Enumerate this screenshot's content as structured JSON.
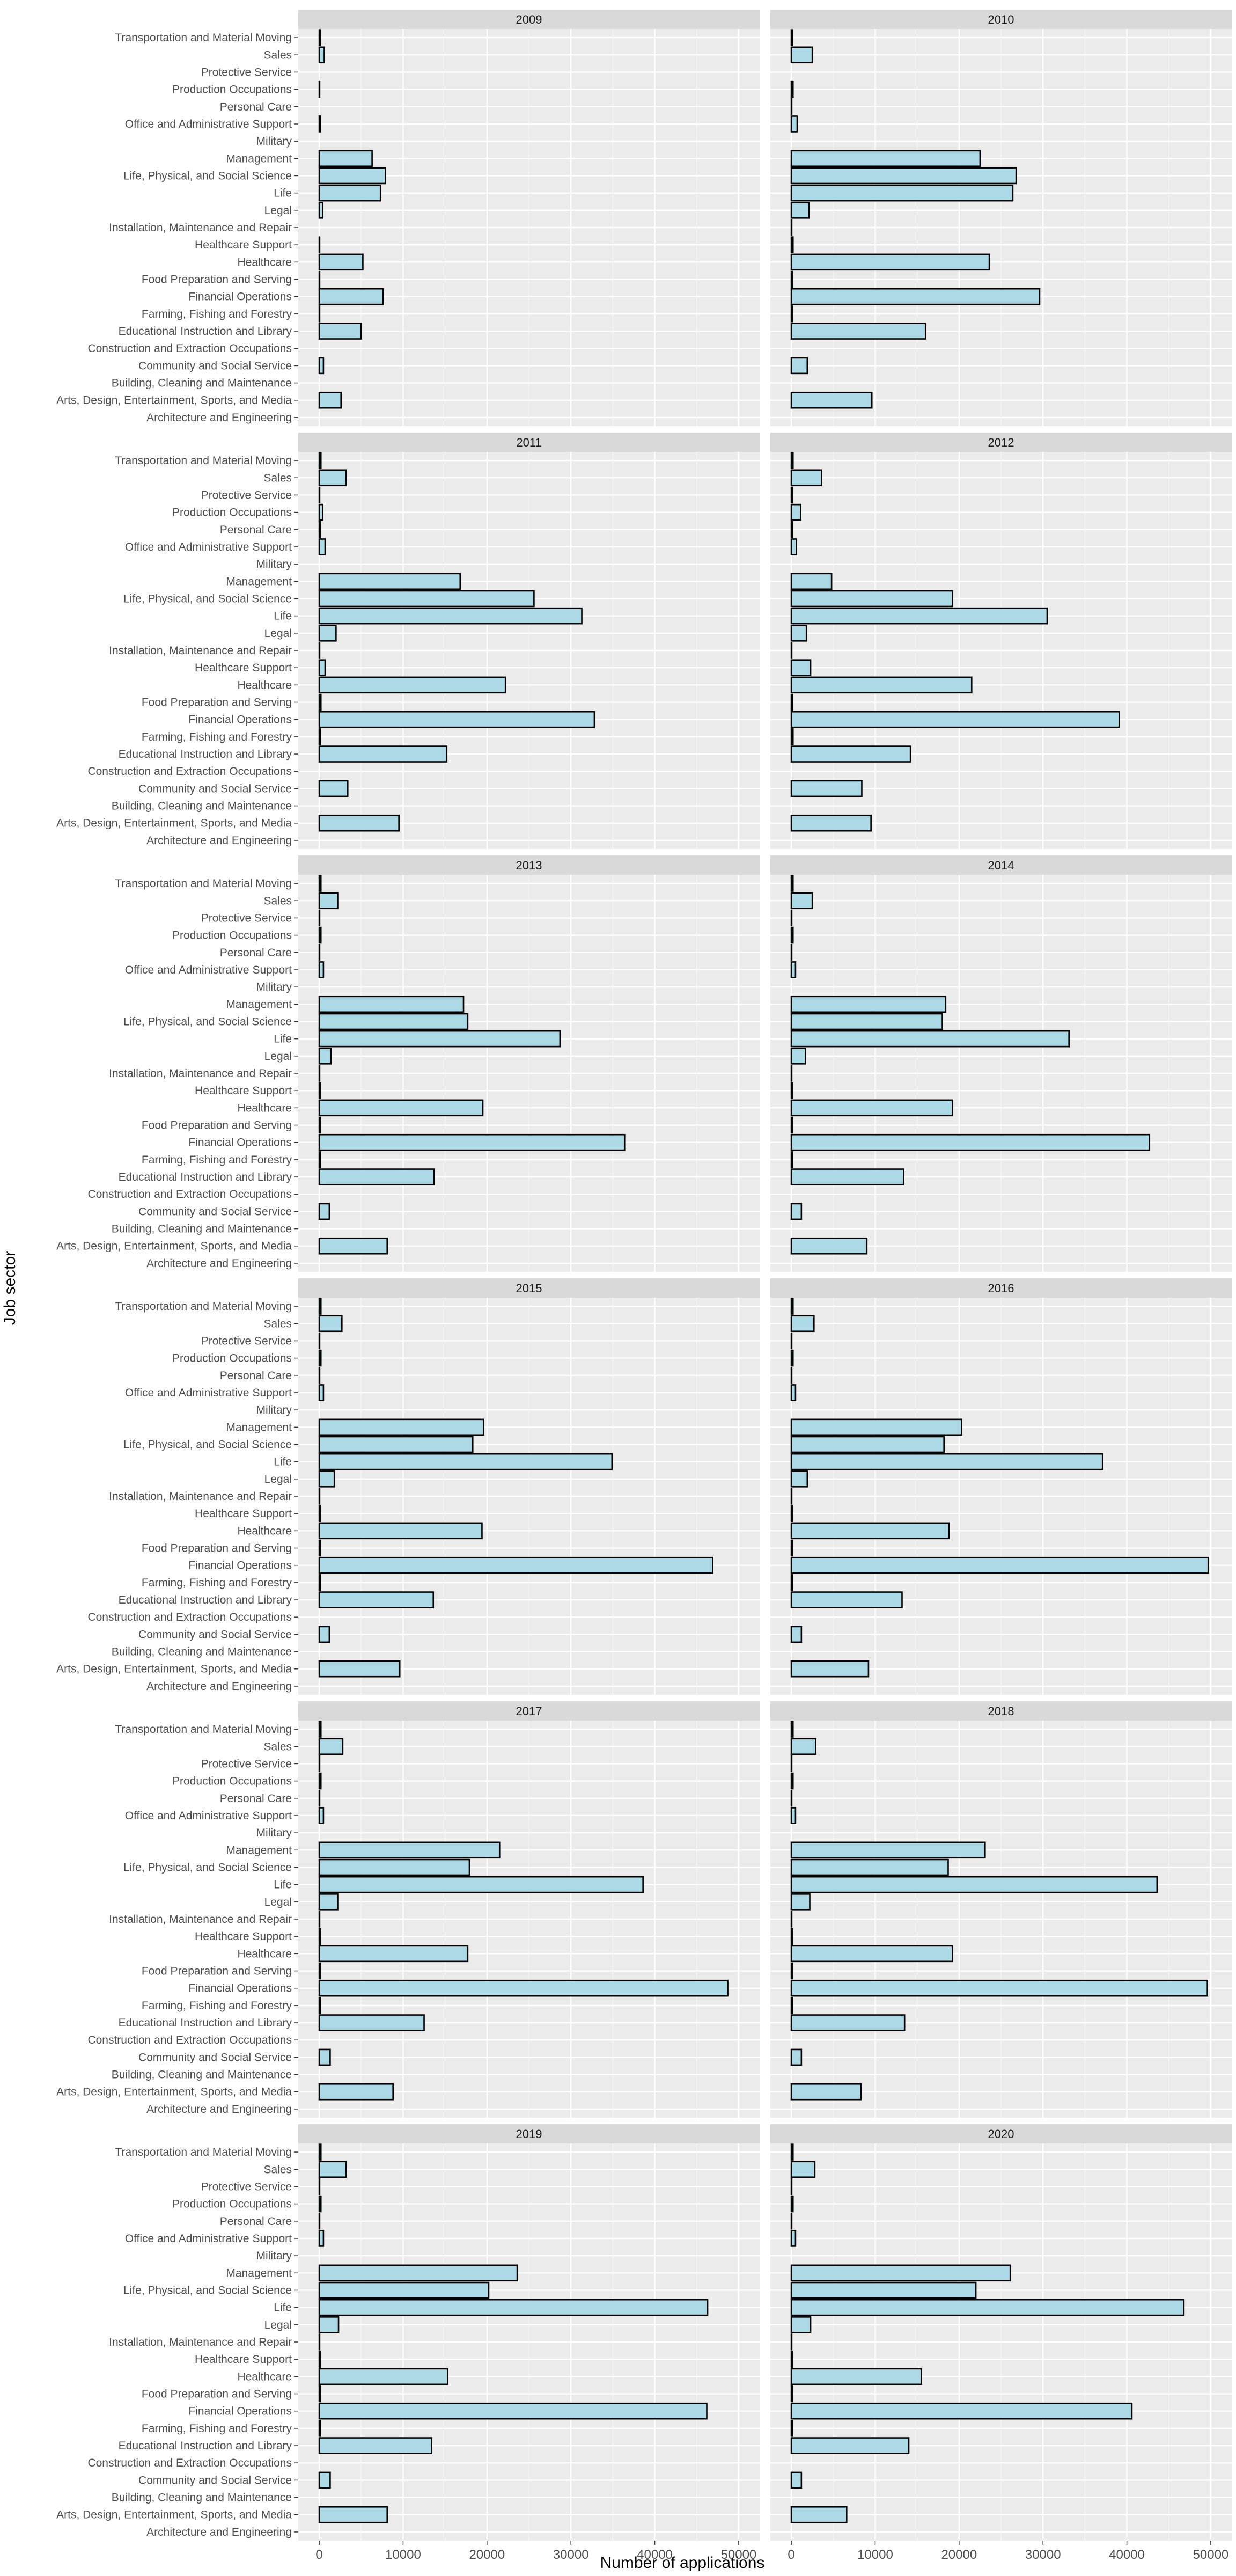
{
  "chart_data": {
    "type": "bar",
    "orientation": "horizontal",
    "xlabel": "Number of applications",
    "ylabel": "Job sector",
    "xlim": [
      -2500,
      52500
    ],
    "x_ticks": [
      0,
      10000,
      20000,
      30000,
      40000,
      50000
    ],
    "x_tick_labels": [
      "0",
      "10000",
      "20000",
      "30000",
      "40000",
      "50000"
    ],
    "grid": true,
    "facet_layout": "6 rows x 2 columns",
    "bar_fill": "#add8e6",
    "bar_stroke": "#000000",
    "panel_background": "#ebebeb",
    "strip_background": "#d9d9d9",
    "grid_color": "#ffffff",
    "categories": [
      "Transportation and Material Moving",
      "Sales",
      "Protective Service",
      "Production Occupations",
      "Personal Care",
      "Office and Administrative Support",
      "Military",
      "Management",
      "Life, Physical, and Social Science",
      "Life",
      "Legal",
      "Installation, Maintenance and Repair",
      "Healthcare Support",
      "Healthcare",
      "Food Preparation and Serving",
      "Financial Operations",
      "Farming, Fishing and Forestry",
      "Educational Instruction and Library",
      "Construction and Extraction Occupations",
      "Community and Social Service",
      "Building, Cleaning and Maintenance",
      "Arts, Design, Entertainment, Sports, and Media",
      "Architecture and Engineering"
    ],
    "facets": [
      {
        "label": "2009",
        "values": [
          100,
          600,
          0,
          50,
          0,
          150,
          0,
          6300,
          7900,
          7300,
          400,
          0,
          50,
          5200,
          50,
          7600,
          50,
          5000,
          0,
          500,
          0,
          2600,
          0
        ]
      },
      {
        "label": "2010",
        "values": [
          150,
          2500,
          0,
          200,
          50,
          700,
          0,
          22500,
          26800,
          26400,
          2100,
          50,
          200,
          23600,
          100,
          29600,
          100,
          16000,
          0,
          1900,
          0,
          9600,
          0
        ]
      },
      {
        "label": "2011",
        "values": [
          200,
          3200,
          50,
          400,
          100,
          700,
          0,
          16800,
          25600,
          31300,
          2000,
          50,
          700,
          22200,
          200,
          32800,
          150,
          15200,
          0,
          3400,
          0,
          9500,
          0
        ]
      },
      {
        "label": "2012",
        "values": [
          200,
          3600,
          100,
          1100,
          150,
          600,
          0,
          4800,
          19200,
          30500,
          1800,
          50,
          2300,
          21500,
          150,
          39100,
          200,
          14200,
          0,
          8400,
          0,
          9500,
          0
        ]
      },
      {
        "label": "2013",
        "values": [
          200,
          2200,
          50,
          200,
          50,
          500,
          0,
          17200,
          17700,
          28700,
          1400,
          50,
          100,
          19500,
          100,
          36400,
          150,
          13700,
          0,
          1200,
          0,
          8100,
          0
        ]
      },
      {
        "label": "2014",
        "values": [
          200,
          2500,
          50,
          200,
          50,
          500,
          0,
          18400,
          18000,
          33100,
          1700,
          50,
          100,
          19200,
          100,
          42700,
          150,
          13400,
          0,
          1200,
          0,
          9000,
          0
        ]
      },
      {
        "label": "2015",
        "values": [
          200,
          2700,
          50,
          200,
          50,
          500,
          0,
          19600,
          18300,
          34900,
          1800,
          50,
          100,
          19400,
          100,
          46900,
          150,
          13600,
          0,
          1200,
          0,
          9600,
          0
        ]
      },
      {
        "label": "2016",
        "values": [
          200,
          2700,
          50,
          200,
          50,
          500,
          0,
          20300,
          18200,
          37100,
          1900,
          50,
          100,
          18800,
          100,
          49700,
          150,
          13200,
          0,
          1200,
          0,
          9200,
          0
        ]
      },
      {
        "label": "2017",
        "values": [
          200,
          2800,
          50,
          200,
          50,
          500,
          0,
          21500,
          17900,
          38600,
          2200,
          50,
          100,
          17700,
          100,
          48700,
          150,
          12500,
          0,
          1300,
          0,
          8800,
          0
        ]
      },
      {
        "label": "2018",
        "values": [
          200,
          2900,
          50,
          200,
          50,
          500,
          0,
          23100,
          18700,
          43600,
          2200,
          50,
          100,
          19200,
          100,
          49600,
          150,
          13500,
          0,
          1200,
          0,
          8300,
          0
        ]
      },
      {
        "label": "2019",
        "values": [
          200,
          3200,
          50,
          200,
          50,
          500,
          0,
          23600,
          20200,
          46300,
          2300,
          50,
          100,
          15300,
          100,
          46200,
          150,
          13400,
          0,
          1300,
          0,
          8100,
          0
        ]
      },
      {
        "label": "2020",
        "values": [
          200,
          2800,
          50,
          200,
          50,
          500,
          0,
          26100,
          22000,
          46800,
          2300,
          50,
          100,
          15500,
          100,
          40600,
          150,
          14000,
          0,
          1200,
          0,
          6600,
          0
        ]
      }
    ]
  }
}
